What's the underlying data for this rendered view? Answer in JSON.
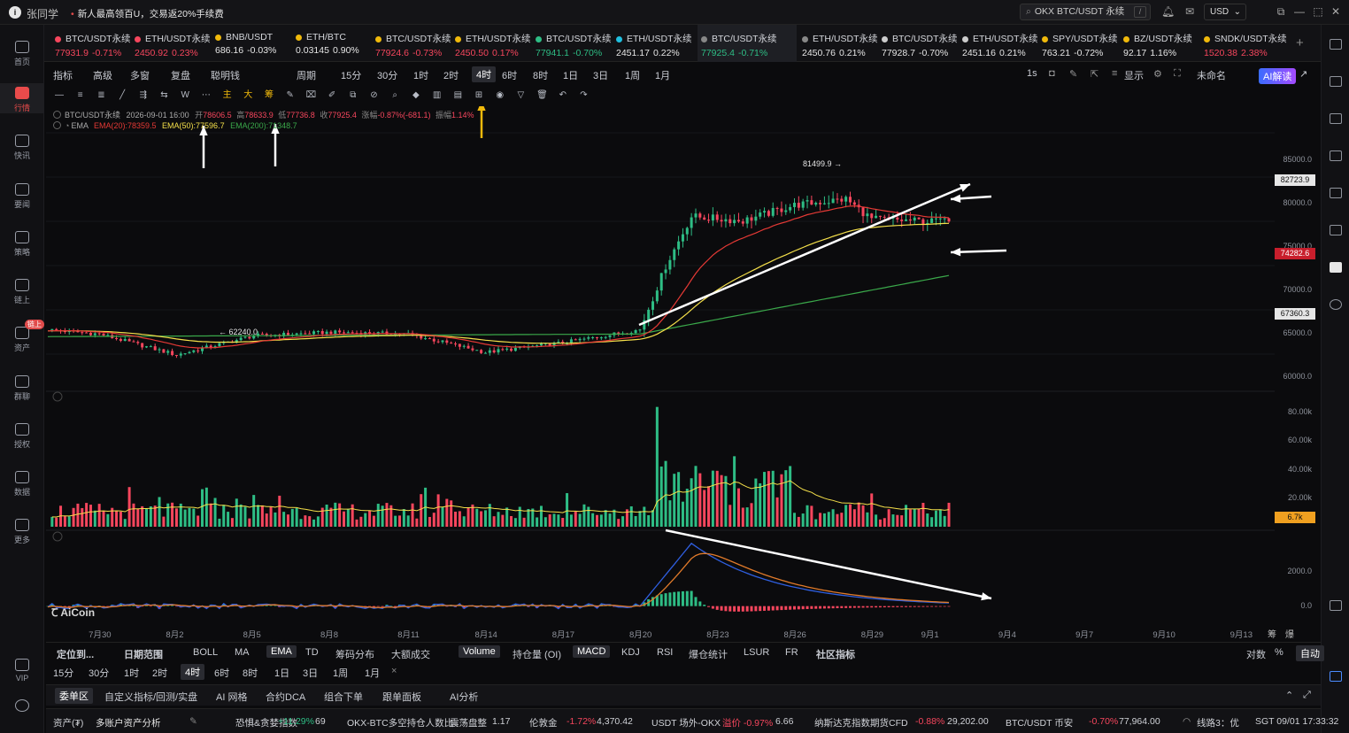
{
  "titlebar": {
    "user": "张同学",
    "promo": "新人最高领百U，交易返20%手续费",
    "search": "OKX BTC/USDT 永续",
    "search_shortcut": "/",
    "currency": "USD"
  },
  "sidebar": [
    {
      "label": "首页",
      "icon": "home-icon"
    },
    {
      "label": "行情",
      "icon": "chart-bars-icon",
      "active": true
    },
    {
      "label": "快讯",
      "icon": "news-icon"
    },
    {
      "label": "要闻",
      "icon": "document-icon"
    },
    {
      "label": "策略",
      "icon": "robot-icon"
    },
    {
      "label": "链上",
      "icon": "chain-icon"
    },
    {
      "label": "资产",
      "icon": "wallet-icon",
      "badge": "链上"
    },
    {
      "label": "群聊",
      "icon": "chat-icon"
    },
    {
      "label": "授权",
      "icon": "key-icon"
    },
    {
      "label": "数据",
      "icon": "data-icon"
    },
    {
      "label": "更多",
      "icon": "grid-icon"
    },
    {
      "label": "VIP",
      "icon": "vip-icon"
    }
  ],
  "tabs": [
    {
      "name": "BTC/USDT永续",
      "price": "77931.9",
      "change": "-0.71%",
      "dir": "down",
      "dot": "#f6465d"
    },
    {
      "name": "ETH/USDT永续",
      "price": "2450.92",
      "change": "0.23%",
      "dir": "down",
      "dot": "#f6465d"
    },
    {
      "name": "BNB/USDT",
      "price": "686.16",
      "change": "-0.03%",
      "dir": "flat",
      "dot": "#f0b90b"
    },
    {
      "name": "ETH/BTC",
      "price": "0.03145",
      "change": "0.90%",
      "dir": "flat",
      "dot": "#f0b90b"
    },
    {
      "name": "BTC/USDT永续",
      "price": "77924.6",
      "change": "-0.73%",
      "dir": "down",
      "dot": "#f0b90b"
    },
    {
      "name": "ETH/USDT永续",
      "price": "2450.50",
      "change": "0.17%",
      "dir": "down",
      "dot": "#f0b90b"
    },
    {
      "name": "BTC/USDT永续",
      "price": "77941.1",
      "change": "-0.70%",
      "dir": "up",
      "dot": "#2ebd85"
    },
    {
      "name": "ETH/USDT永续",
      "price": "2451.17",
      "change": "0.22%",
      "dir": "flat",
      "dot": "#20c0e0"
    },
    {
      "name": "BTC/USDT永续",
      "price": "77925.4",
      "change": "-0.71%",
      "dir": "up",
      "dot": "#888",
      "active": true
    },
    {
      "name": "ETH/USDT永续",
      "price": "2450.76",
      "change": "0.21%",
      "dir": "flat",
      "dot": "#888"
    },
    {
      "name": "BTC/USDT永续",
      "price": "77928.7",
      "change": "-0.70%",
      "dir": "flat",
      "dot": "#ccc"
    },
    {
      "name": "ETH/USDT永续",
      "price": "2451.16",
      "change": "0.21%",
      "dir": "flat",
      "dot": "#ccc"
    },
    {
      "name": "SPY/USDT永续",
      "price": "763.21",
      "change": "-0.72%",
      "dir": "flat",
      "dot": "#f0b90b"
    },
    {
      "name": "BZ/USDT永续",
      "price": "92.17",
      "change": "1.16%",
      "dir": "flat",
      "dot": "#f0b90b"
    },
    {
      "name": "SNDK/USDT永续",
      "price": "1520.38",
      "change": "2.38%",
      "dir": "down",
      "dot": "#f0b90b"
    }
  ],
  "toolbar1": {
    "items": [
      "指标",
      "高级",
      "多窗",
      "复盘",
      "聪明钱",
      "周期",
      "15分",
      "30分",
      "1时",
      "2时",
      "4时",
      "6时",
      "8时",
      "1日",
      "3日",
      "1周",
      "1月"
    ],
    "selected": "4时",
    "right_items": [
      "1s",
      "显示",
      "未命名",
      "AI解读"
    ]
  },
  "chart_info": {
    "symbol": "BTC/USDT永续",
    "datetime": "2026-09-01 16:00",
    "open_label": "开",
    "open": "78606.5",
    "high_label": "高",
    "high": "78633.9",
    "low_label": "低",
    "low": "77736.8",
    "close_label": "收",
    "close": "77925.4",
    "change_label": "涨幅",
    "change": "-0.87%(-681.1)",
    "amp_label": "振幅",
    "amp": "1.14%",
    "ema_label": "EMA",
    "ema20": "EMA(20):78359.5",
    "ema50": "EMA(50):77596.7",
    "ema200": "EMA(200):71348.7",
    "high_marker": "81499.9",
    "low_marker": "62240.0",
    "watermark": "AiCoin"
  },
  "price_axis": {
    "ticks": [
      "85000.0",
      "80000.0",
      "75000.0",
      "70000.0",
      "65000.0",
      "60000.0"
    ],
    "box_current": "82723.9",
    "box_red": "74282.6",
    "box_white": "67360.3",
    "colors": {
      "red": "#c81e2c",
      "white": "#e6e6e6"
    }
  },
  "volume_axis": {
    "ticks": [
      "80.00k",
      "60.00k",
      "40.00k",
      "20.00k"
    ],
    "box": "6.7k"
  },
  "macd_axis": {
    "ticks": [
      "2000.0",
      "0.0"
    ]
  },
  "x_axis": [
    "7月30",
    "8月2",
    "8月5",
    "8月8",
    "8月11",
    "8月14",
    "8月17",
    "8月20",
    "8月23",
    "8月26",
    "8月29",
    "9月1",
    "9月4",
    "9月7",
    "9月10",
    "9月13"
  ],
  "x_axis_right": [
    "筹",
    "爆"
  ],
  "bottom_row1": {
    "left": [
      "定位到...",
      "日期范围"
    ],
    "indicators": [
      "BOLL",
      "MA",
      "EMA",
      "TD",
      "筹码分布",
      "大额成交"
    ],
    "indicators_selected": "EMA",
    "sub": [
      "Volume",
      "持仓量 (OI)",
      "MACD",
      "KDJ",
      "RSI",
      "爆仓统计",
      "LSUR",
      "FR",
      "社区指标"
    ],
    "sub_selected": [
      "Volume",
      "MACD"
    ],
    "right": [
      "对数",
      "%",
      "自动"
    ]
  },
  "bottom_row2": {
    "items": [
      "15分",
      "30分",
      "1时",
      "2时",
      "4时",
      "6时",
      "8时",
      "1日",
      "3日",
      "1周",
      "1月"
    ],
    "selected": "4时",
    "close": "×"
  },
  "bottom_tabs": [
    "委单区",
    "自定义指标/回测/实盘",
    "AI 网格",
    "合约DCA",
    "组合下单",
    "跟单面板",
    "AI分析"
  ],
  "statusbar": {
    "assets": "资产(₮)",
    "analysis": "多账户资产分析",
    "fear_label": "恐惧&贪婪指数",
    "fear_change": "+11.29%",
    "fear_value": "69",
    "okx_label": "OKX-BTC多空持仓人数比",
    "okx_state": "震荡盘整",
    "okx_value": "1.17",
    "gold_label": "伦敦金",
    "gold_change": "-1.72%",
    "gold_value": "4,370.42",
    "usdt_label": "USDT 场外-OKX",
    "usdt_premium": "溢价 -0.97%",
    "usdt_value": "6.66",
    "nasdaq_label": "纳斯达克指数期货CFD",
    "nasdaq_change": "-0.88%",
    "nasdaq_value": "29,202.00",
    "btc_label": "BTC/USDT 币安",
    "btc_change": "-0.70%",
    "btc_value": "77,964.00",
    "line_label": "线路3：优",
    "time": "SGT 09/01 17:33:32"
  },
  "chart_data": {
    "type": "candlestick",
    "title": "BTC/USDT永续 4时",
    "x_range": [
      "7月28",
      "9月1"
    ],
    "price_range": [
      57000,
      87500
    ],
    "price_key_points": [
      {
        "x": "7月28",
        "close": 65500
      },
      {
        "x": "7月30",
        "close": 65000
      },
      {
        "x": "8月2",
        "close": 62600
      },
      {
        "x": "8月5",
        "close": 64800
      },
      {
        "x": "8月8",
        "close": 65200
      },
      {
        "x": "8月11",
        "close": 65000
      },
      {
        "x": "8月14",
        "close": 62900
      },
      {
        "x": "8月17",
        "close": 64000
      },
      {
        "x": "8月20",
        "close": 65500
      },
      {
        "x": "8月21",
        "close": 72800
      },
      {
        "x": "8月22",
        "close": 78500
      },
      {
        "x": "8月24",
        "close": 78000
      },
      {
        "x": "8月26",
        "close": 79800
      },
      {
        "x": "8月28",
        "close": 80500
      },
      {
        "x": "8月29",
        "close": 78200
      },
      {
        "x": "9月1",
        "close": 77925
      }
    ],
    "series": [
      {
        "name": "EMA(20)",
        "color": "#e53935",
        "last": 78359.5
      },
      {
        "name": "EMA(50)",
        "color": "#f5e04a",
        "last": 77596.7
      },
      {
        "name": "EMA(200)",
        "color": "#3aa84a",
        "last": 71348.7
      }
    ],
    "volume_range": [
      0,
      90000
    ],
    "volume_peak": 84000,
    "macd_range": [
      -800,
      4000
    ],
    "macd_peak": 3700
  }
}
